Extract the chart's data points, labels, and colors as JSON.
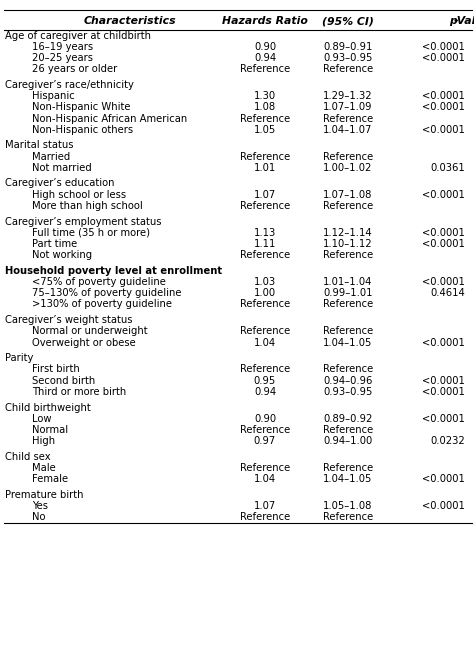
{
  "columns": [
    "Characteristics",
    "Hazards Ratio",
    "(95% CI)",
    "p-Value"
  ],
  "rows": [
    {
      "text": "Age of caregiver at childbirth",
      "indent": 0,
      "hr": "",
      "ci": "",
      "pv": "",
      "category": true,
      "leftbold": false
    },
    {
      "text": "16–19 years",
      "indent": 1,
      "hr": "0.90",
      "ci": "0.89–0.91",
      "pv": "<0.0001",
      "category": false,
      "leftbold": false
    },
    {
      "text": "20–25 years",
      "indent": 1,
      "hr": "0.94",
      "ci": "0.93–0.95",
      "pv": "<0.0001",
      "category": false,
      "leftbold": false
    },
    {
      "text": "26 years or older",
      "indent": 1,
      "hr": "Reference",
      "ci": "Reference",
      "pv": "",
      "category": false,
      "leftbold": false
    },
    {
      "text": "",
      "spacer": true
    },
    {
      "text": "Caregiver’s race/ethnicity",
      "indent": 0,
      "hr": "",
      "ci": "",
      "pv": "",
      "category": true,
      "leftbold": false
    },
    {
      "text": "Hispanic",
      "indent": 1,
      "hr": "1.30",
      "ci": "1.29–1.32",
      "pv": "<0.0001",
      "category": false,
      "leftbold": false
    },
    {
      "text": "Non-Hispanic White",
      "indent": 1,
      "hr": "1.08",
      "ci": "1.07–1.09",
      "pv": "<0.0001",
      "category": false,
      "leftbold": false
    },
    {
      "text": "Non-Hispanic African American",
      "indent": 1,
      "hr": "Reference",
      "ci": "Reference",
      "pv": "",
      "category": false,
      "leftbold": false
    },
    {
      "text": "Non-Hispanic others",
      "indent": 1,
      "hr": "1.05",
      "ci": "1.04–1.07",
      "pv": "<0.0001",
      "category": false,
      "leftbold": false
    },
    {
      "text": "",
      "spacer": true
    },
    {
      "text": "Marital status",
      "indent": 0,
      "hr": "",
      "ci": "",
      "pv": "",
      "category": true,
      "leftbold": false
    },
    {
      "text": "Married",
      "indent": 1,
      "hr": "Reference",
      "ci": "Reference",
      "pv": "",
      "category": false,
      "leftbold": false
    },
    {
      "text": "Not married",
      "indent": 1,
      "hr": "1.01",
      "ci": "1.00–1.02",
      "pv": "0.0361",
      "category": false,
      "leftbold": false
    },
    {
      "text": "",
      "spacer": true
    },
    {
      "text": "Caregiver’s education",
      "indent": 0,
      "hr": "",
      "ci": "",
      "pv": "",
      "category": true,
      "leftbold": false
    },
    {
      "text": "High school or less",
      "indent": 1,
      "hr": "1.07",
      "ci": "1.07–1.08",
      "pv": "<0.0001",
      "category": false,
      "leftbold": false
    },
    {
      "text": "More than high school",
      "indent": 1,
      "hr": "Reference",
      "ci": "Reference",
      "pv": "",
      "category": false,
      "leftbold": false
    },
    {
      "text": "",
      "spacer": true
    },
    {
      "text": "Caregiver’s employment status",
      "indent": 0,
      "hr": "",
      "ci": "",
      "pv": "",
      "category": true,
      "leftbold": false
    },
    {
      "text": "Full time (35 h or more)",
      "indent": 1,
      "hr": "1.13",
      "ci": "1.12–1.14",
      "pv": "<0.0001",
      "category": false,
      "leftbold": false
    },
    {
      "text": "Part time",
      "indent": 1,
      "hr": "1.11",
      "ci": "1.10–1.12",
      "pv": "<0.0001",
      "category": false,
      "leftbold": false
    },
    {
      "text": "Not working",
      "indent": 1,
      "hr": "Reference",
      "ci": "Reference",
      "pv": "",
      "category": false,
      "leftbold": false
    },
    {
      "text": "",
      "spacer": true
    },
    {
      "text": "Household poverty level at enrollment",
      "indent": 0,
      "hr": "",
      "ci": "",
      "pv": "",
      "category": true,
      "leftbold": true
    },
    {
      "text": "<75% of poverty guideline",
      "indent": 1,
      "hr": "1.03",
      "ci": "1.01–1.04",
      "pv": "<0.0001",
      "category": false,
      "leftbold": false
    },
    {
      "text": "75–130% of poverty guideline",
      "indent": 1,
      "hr": "1.00",
      "ci": "0.99–1.01",
      "pv": "0.4614",
      "category": false,
      "leftbold": false
    },
    {
      "text": ">130% of poverty guideline",
      "indent": 1,
      "hr": "Reference",
      "ci": "Reference",
      "pv": "",
      "category": false,
      "leftbold": false
    },
    {
      "text": "",
      "spacer": true
    },
    {
      "text": "Caregiver’s weight status",
      "indent": 0,
      "hr": "",
      "ci": "",
      "pv": "",
      "category": true,
      "leftbold": false
    },
    {
      "text": "Normal or underweight",
      "indent": 1,
      "hr": "Reference",
      "ci": "Reference",
      "pv": "",
      "category": false,
      "leftbold": false
    },
    {
      "text": "Overweight or obese",
      "indent": 1,
      "hr": "1.04",
      "ci": "1.04–1.05",
      "pv": "<0.0001",
      "category": false,
      "leftbold": false
    },
    {
      "text": "",
      "spacer": true
    },
    {
      "text": "Parity",
      "indent": 0,
      "hr": "",
      "ci": "",
      "pv": "",
      "category": true,
      "leftbold": false
    },
    {
      "text": "First birth",
      "indent": 1,
      "hr": "Reference",
      "ci": "Reference",
      "pv": "",
      "category": false,
      "leftbold": false
    },
    {
      "text": "Second birth",
      "indent": 1,
      "hr": "0.95",
      "ci": "0.94–0.96",
      "pv": "<0.0001",
      "category": false,
      "leftbold": false
    },
    {
      "text": "Third or more birth",
      "indent": 1,
      "hr": "0.94",
      "ci": "0.93–0.95",
      "pv": "<0.0001",
      "category": false,
      "leftbold": false
    },
    {
      "text": "",
      "spacer": true
    },
    {
      "text": "Child birthweight",
      "indent": 0,
      "hr": "",
      "ci": "",
      "pv": "",
      "category": true,
      "leftbold": false
    },
    {
      "text": "Low",
      "indent": 1,
      "hr": "0.90",
      "ci": "0.89–0.92",
      "pv": "<0.0001",
      "category": false,
      "leftbold": false
    },
    {
      "text": "Normal",
      "indent": 1,
      "hr": "Reference",
      "ci": "Reference",
      "pv": "",
      "category": false,
      "leftbold": false
    },
    {
      "text": "High",
      "indent": 1,
      "hr": "0.97",
      "ci": "0.94–1.00",
      "pv": "0.0232",
      "category": false,
      "leftbold": false
    },
    {
      "text": "",
      "spacer": true
    },
    {
      "text": "Child sex",
      "indent": 0,
      "hr": "",
      "ci": "",
      "pv": "",
      "category": true,
      "leftbold": false
    },
    {
      "text": "Male",
      "indent": 1,
      "hr": "Reference",
      "ci": "Reference",
      "pv": "",
      "category": false,
      "leftbold": false
    },
    {
      "text": "Female",
      "indent": 1,
      "hr": "1.04",
      "ci": "1.04–1.05",
      "pv": "<0.0001",
      "category": false,
      "leftbold": false
    },
    {
      "text": "",
      "spacer": true
    },
    {
      "text": "Premature birth",
      "indent": 0,
      "hr": "",
      "ci": "",
      "pv": "",
      "category": true,
      "leftbold": false
    },
    {
      "text": "Yes",
      "indent": 1,
      "hr": "1.07",
      "ci": "1.05–1.08",
      "pv": "<0.0001",
      "category": false,
      "leftbold": false
    },
    {
      "text": "No",
      "indent": 1,
      "hr": "Reference",
      "ci": "Reference",
      "pv": "",
      "category": false,
      "leftbold": false
    }
  ],
  "bg_color": "#ffffff",
  "line_color": "#000000",
  "text_color": "#000000",
  "font_size": 7.2,
  "header_font_size": 7.8
}
